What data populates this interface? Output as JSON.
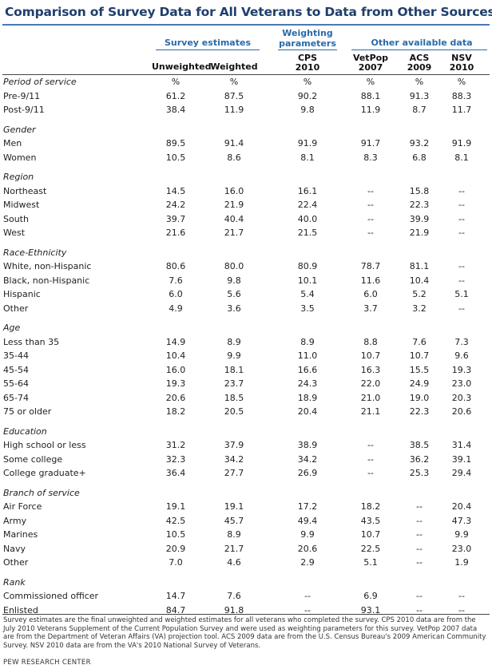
{
  "title": "Comparison of Survey Data for All Veterans to Data from Other Sources",
  "groups": {
    "survey": "Survey estimates",
    "weighting": [
      "Weighting",
      "parameters"
    ],
    "other": "Other available data"
  },
  "columns": [
    {
      "line1": "Unweighted",
      "line2": ""
    },
    {
      "line1": "Weighted",
      "line2": ""
    },
    {
      "line1": "CPS",
      "line2": "2010"
    },
    {
      "line1": "VetPop",
      "line2": "2007"
    },
    {
      "line1": "ACS",
      "line2": "2009"
    },
    {
      "line1": "NSV",
      "line2": "2010"
    }
  ],
  "rows": [
    {
      "type": "section",
      "label": "Period of service",
      "values": [
        "%",
        "%",
        "%",
        "%",
        "%",
        "%"
      ]
    },
    {
      "type": "data",
      "label": "Pre-9/11",
      "values": [
        "61.2",
        "87.5",
        "90.2",
        "88.1",
        "91.3",
        "88.3"
      ]
    },
    {
      "type": "data",
      "label": "Post-9/11",
      "values": [
        "38.4",
        "11.9",
        "9.8",
        "11.9",
        "8.7",
        "11.7"
      ]
    },
    {
      "type": "section",
      "label": "Gender",
      "values": []
    },
    {
      "type": "data",
      "label": "Men",
      "values": [
        "89.5",
        "91.4",
        "91.9",
        "91.7",
        "93.2",
        "91.9"
      ]
    },
    {
      "type": "data",
      "label": "Women",
      "values": [
        "10.5",
        "8.6",
        "8.1",
        "8.3",
        "6.8",
        "8.1"
      ]
    },
    {
      "type": "section",
      "label": "Region",
      "values": []
    },
    {
      "type": "data",
      "label": "Northeast",
      "values": [
        "14.5",
        "16.0",
        "16.1",
        "--",
        "15.8",
        "--"
      ]
    },
    {
      "type": "data",
      "label": "Midwest",
      "values": [
        "24.2",
        "21.9",
        "22.4",
        "--",
        "22.3",
        "--"
      ]
    },
    {
      "type": "data",
      "label": "South",
      "values": [
        "39.7",
        "40.4",
        "40.0",
        "--",
        "39.9",
        "--"
      ]
    },
    {
      "type": "data",
      "label": "West",
      "values": [
        "21.6",
        "21.7",
        "21.5",
        "--",
        "21.9",
        "--"
      ]
    },
    {
      "type": "section",
      "label": "Race-Ethnicity",
      "values": []
    },
    {
      "type": "data",
      "label": "White, non-Hispanic",
      "values": [
        "80.6",
        "80.0",
        "80.9",
        "78.7",
        "81.1",
        "--"
      ]
    },
    {
      "type": "data",
      "label": "Black, non-Hispanic",
      "values": [
        "7.6",
        "9.8",
        "10.1",
        "11.6",
        "10.4",
        "--"
      ]
    },
    {
      "type": "data",
      "label": "Hispanic",
      "values": [
        "6.0",
        "5.6",
        "5.4",
        "6.0",
        "5.2",
        "5.1"
      ]
    },
    {
      "type": "data",
      "label": "Other",
      "values": [
        "4.9",
        "3.6",
        "3.5",
        "3.7",
        "3.2",
        "--"
      ]
    },
    {
      "type": "section",
      "label": "Age",
      "values": []
    },
    {
      "type": "data",
      "label": "Less than 35",
      "values": [
        "14.9",
        "8.9",
        "8.9",
        "8.8",
        "7.6",
        "7.3"
      ]
    },
    {
      "type": "data",
      "label": "35-44",
      "values": [
        "10.4",
        "9.9",
        "11.0",
        "10.7",
        "10.7",
        "9.6"
      ]
    },
    {
      "type": "data",
      "label": "45-54",
      "values": [
        "16.0",
        "18.1",
        "16.6",
        "16.3",
        "15.5",
        "19.3"
      ]
    },
    {
      "type": "data",
      "label": "55-64",
      "values": [
        "19.3",
        "23.7",
        "24.3",
        "22.0",
        "24.9",
        "23.0"
      ]
    },
    {
      "type": "data",
      "label": "65-74",
      "values": [
        "20.6",
        "18.5",
        "18.9",
        "21.0",
        "19.0",
        "20.3"
      ]
    },
    {
      "type": "data",
      "label": "75 or older",
      "values": [
        "18.2",
        "20.5",
        "20.4",
        "21.1",
        "22.3",
        "20.6"
      ]
    },
    {
      "type": "section",
      "label": "Education",
      "values": []
    },
    {
      "type": "data",
      "label": "High school or less",
      "values": [
        "31.2",
        "37.9",
        "38.9",
        "--",
        "38.5",
        "31.4"
      ]
    },
    {
      "type": "data",
      "label": "Some college",
      "values": [
        "32.3",
        "34.2",
        "34.2",
        "--",
        "36.2",
        "39.1"
      ]
    },
    {
      "type": "data",
      "label": "College graduate+",
      "values": [
        "36.4",
        "27.7",
        "26.9",
        "--",
        "25.3",
        "29.4"
      ]
    },
    {
      "type": "section",
      "label": "Branch of service",
      "values": []
    },
    {
      "type": "data",
      "label": "Air Force",
      "values": [
        "19.1",
        "19.1",
        "17.2",
        "18.2",
        "--",
        "20.4"
      ]
    },
    {
      "type": "data",
      "label": "Army",
      "values": [
        "42.5",
        "45.7",
        "49.4",
        "43.5",
        "--",
        "47.3"
      ]
    },
    {
      "type": "data",
      "label": "Marines",
      "values": [
        "10.5",
        "8.9",
        "9.9",
        "10.7",
        "--",
        "9.9"
      ]
    },
    {
      "type": "data",
      "label": "Navy",
      "values": [
        "20.9",
        "21.7",
        "20.6",
        "22.5",
        "--",
        "23.0"
      ]
    },
    {
      "type": "data",
      "label": "Other",
      "values": [
        "7.0",
        "4.6",
        "2.9",
        "5.1",
        "--",
        "1.9"
      ]
    },
    {
      "type": "section",
      "label": "Rank",
      "values": []
    },
    {
      "type": "data",
      "label": "Commissioned officer",
      "values": [
        "14.7",
        "7.6",
        "--",
        "6.9",
        "--",
        "--"
      ]
    },
    {
      "type": "data",
      "label": "Enlisted",
      "values": [
        "84.7",
        "91.8",
        "--",
        "93.1",
        "--",
        "--"
      ]
    }
  ],
  "footnote": "Survey estimates are the final unweighted and weighted estimates for all veterans who completed the survey. CPS 2010 data are from the July 2010 Veterans Supplement of the Current Population Survey and were used as weighting parameters for this survey. VetPop 2007 data are from the Department of Veteran Affairs (VA) projection tool. ACS 2009 data are from the U.S. Census Bureau's 2009 American Community Survey. NSV 2010 data are from the VA's 2010 National Survey of Veterans.",
  "source": "PEW RESEARCH CENTER"
}
